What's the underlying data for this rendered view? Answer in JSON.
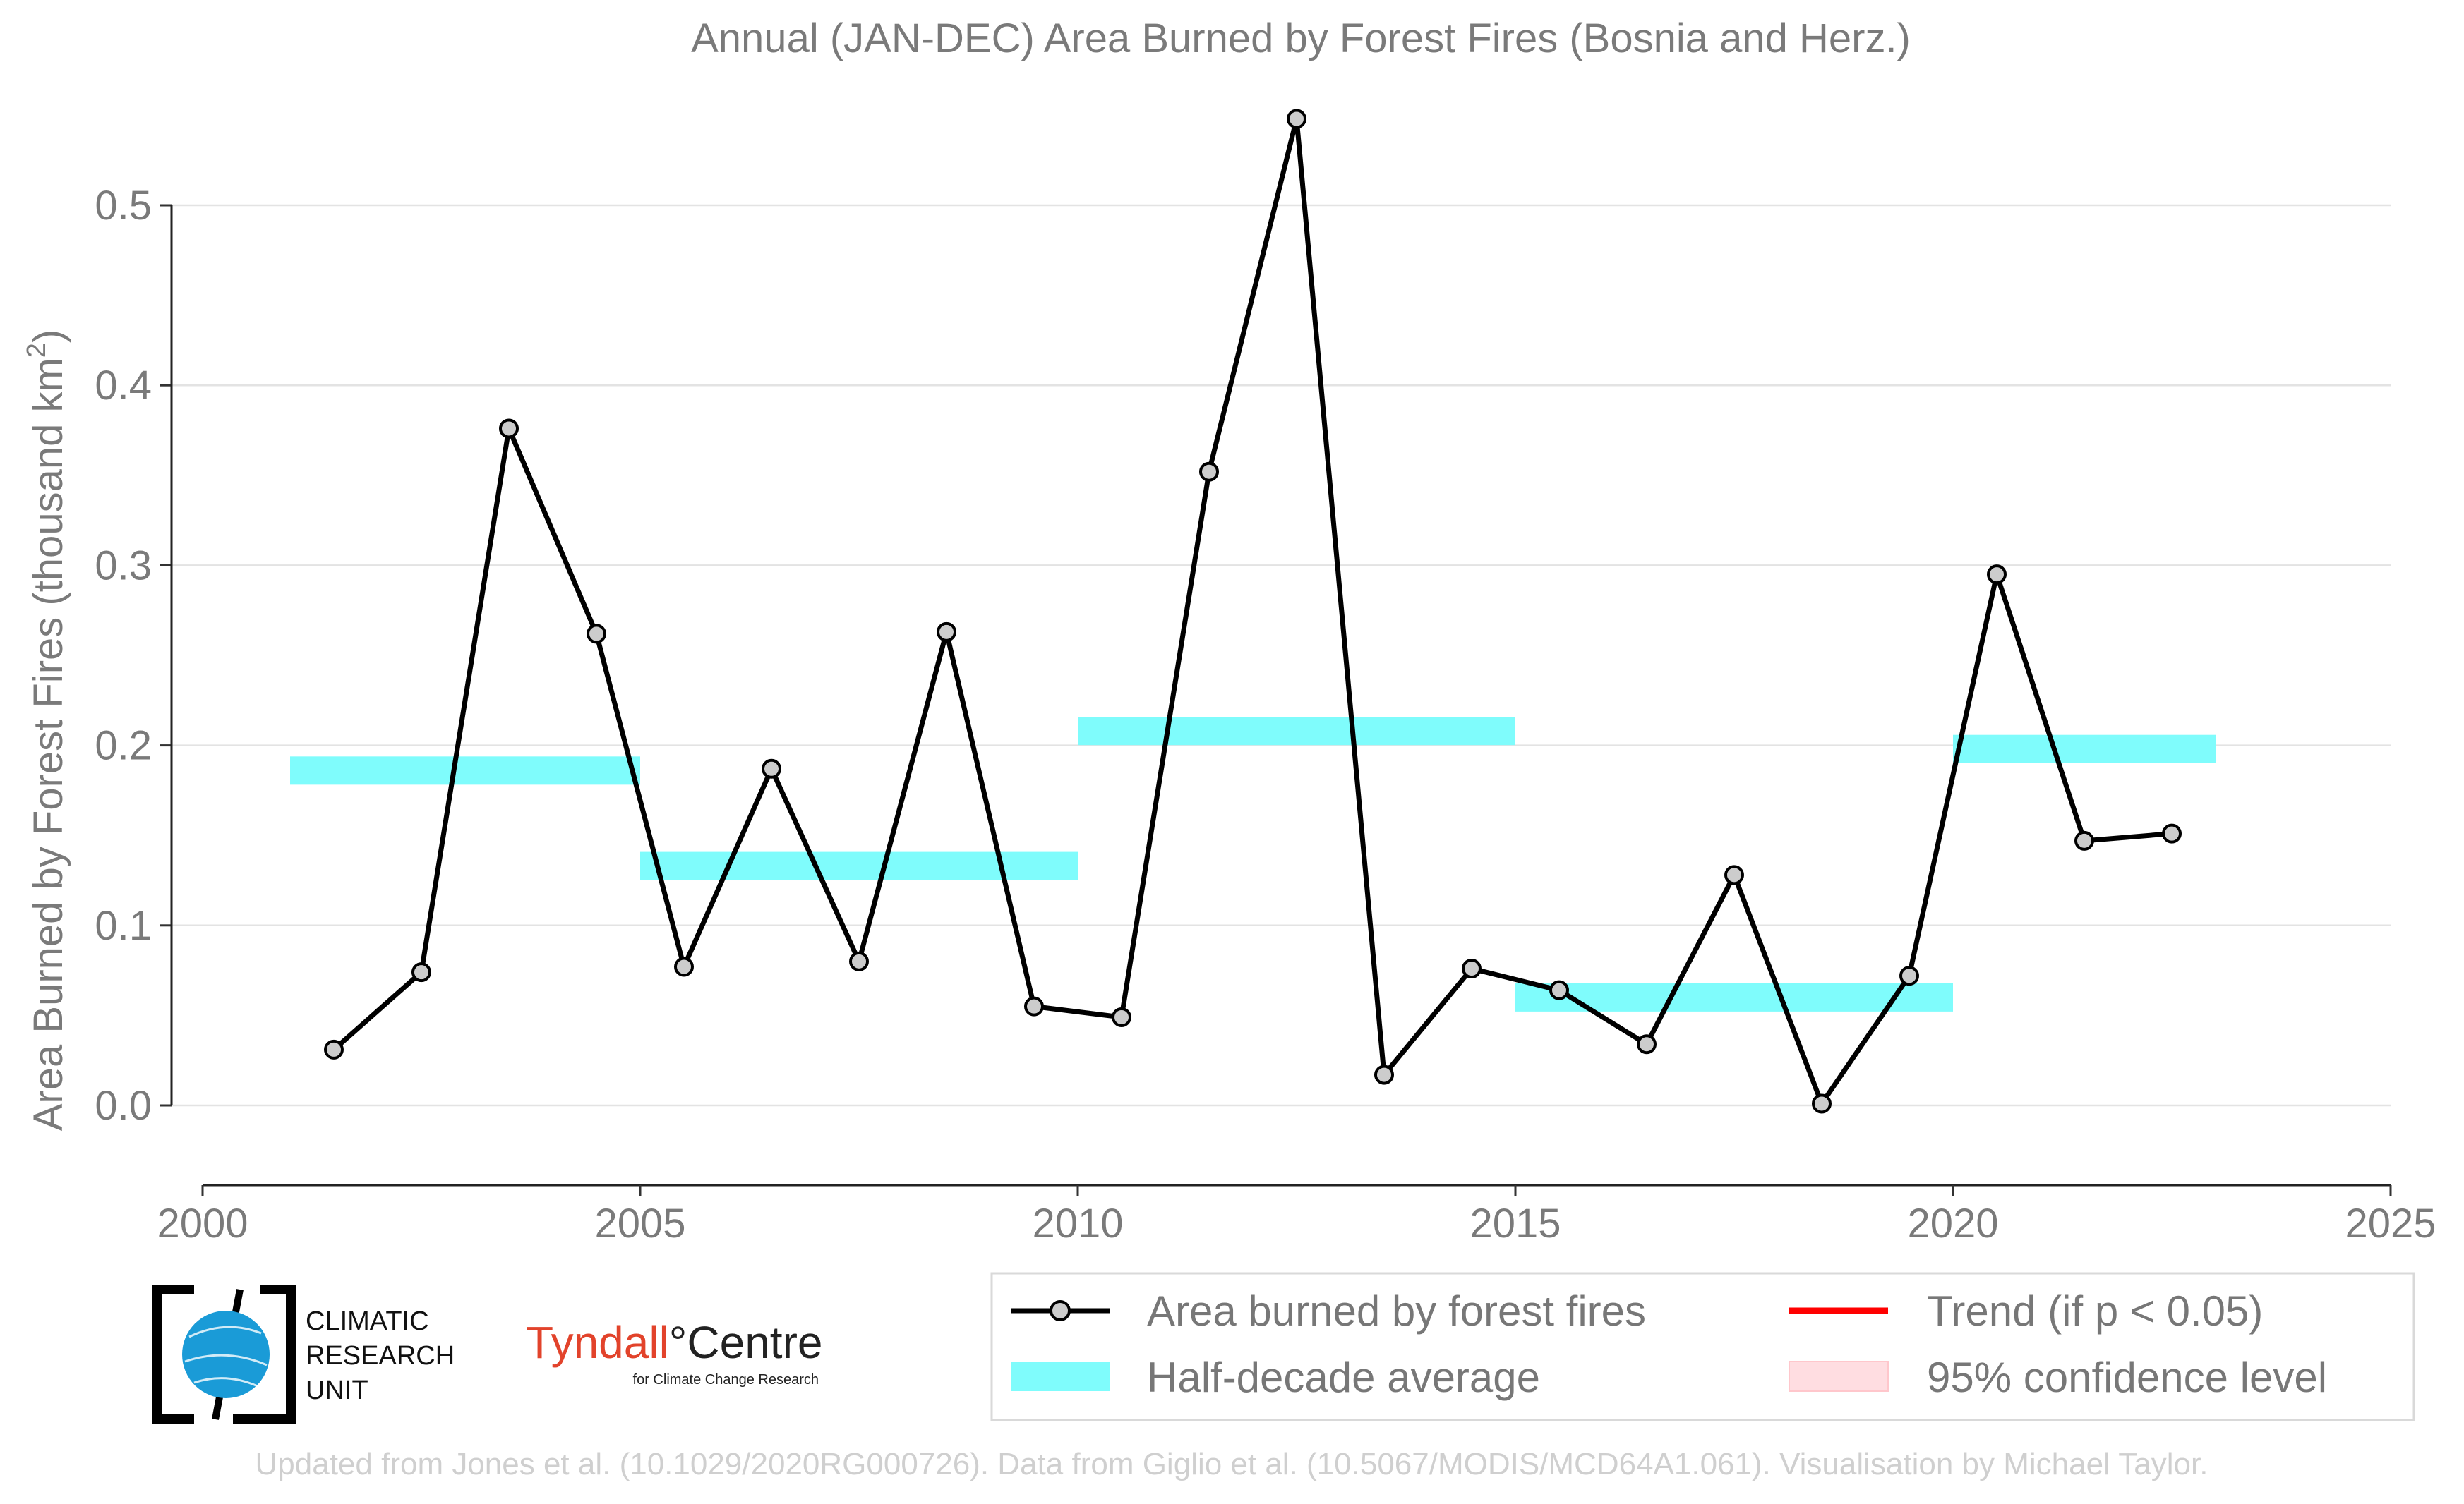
{
  "chart_data": {
    "type": "line",
    "title": "Annual (JAN-DEC) Area Burned by Forest Fires (Bosnia and Herz.)",
    "ylabel": "Area Burned by Forest Fires (thousand km",
    "ylabel_sup": "2",
    "ylabel_close": ")",
    "xlabel": "",
    "xlim": [
      2000,
      2025
    ],
    "ylim": [
      -0.02,
      0.55
    ],
    "x_ticks": [
      2000,
      2005,
      2010,
      2015,
      2020,
      2025
    ],
    "x_tick_labels": [
      "2000",
      "2005",
      "2010",
      "2015",
      "2020",
      "2025"
    ],
    "y_ticks": [
      0.0,
      0.1,
      0.2,
      0.3,
      0.4,
      0.5
    ],
    "y_tick_labels": [
      "0.0",
      "0.1",
      "0.2",
      "0.3",
      "0.4",
      "0.5"
    ],
    "grid": "horizontal",
    "legend_position": "bottom-right",
    "series": [
      {
        "name": "Area burned by forest fires",
        "color": "#000000",
        "marker_fill": "#cccccc",
        "x": [
          2001.5,
          2002.5,
          2003.5,
          2004.5,
          2005.5,
          2006.5,
          2007.5,
          2008.5,
          2009.5,
          2010.5,
          2011.5,
          2012.5,
          2013.5,
          2014.5,
          2015.5,
          2016.5,
          2017.5,
          2018.5,
          2019.5,
          2020.5,
          2021.5,
          2022.5
        ],
        "values": [
          0.031,
          0.074,
          0.376,
          0.262,
          0.077,
          0.187,
          0.08,
          0.263,
          0.055,
          0.049,
          0.352,
          0.548,
          0.017,
          0.076,
          0.064,
          0.034,
          0.128,
          0.001,
          0.072,
          0.295,
          0.147,
          0.151
        ]
      },
      {
        "name": "Half-decade average",
        "type": "band",
        "color": "#7ffcfc",
        "segments": [
          {
            "x0": 2001,
            "x1": 2005,
            "value": 0.186
          },
          {
            "x0": 2005,
            "x1": 2010,
            "value": 0.133
          },
          {
            "x0": 2010,
            "x1": 2015,
            "value": 0.208
          },
          {
            "x0": 2015,
            "x1": 2020,
            "value": 0.06
          },
          {
            "x0": 2020,
            "x1": 2023,
            "value": 0.198
          }
        ]
      }
    ],
    "legend": [
      {
        "label": "Area burned by forest fires",
        "kind": "line-marker",
        "color": "#000000"
      },
      {
        "label": "Trend (if p < 0.05)",
        "kind": "line",
        "color": "#ff0000"
      },
      {
        "label": "Half-decade average",
        "kind": "band",
        "color": "#7ffcfc"
      },
      {
        "label": "95% confidence level",
        "kind": "band",
        "color": "#ffdde1"
      }
    ]
  },
  "logos": {
    "cru": [
      "CLIMATIC",
      "RESEARCH",
      "UNIT"
    ],
    "tyndall_main_a": "Tyndall",
    "tyndall_main_b": "°Centre",
    "tyndall_sub": "for Climate Change Research"
  },
  "footer": "Updated from Jones et al. (10.1029/2020RG000726). Data from Giglio et al. (10.5067/MODIS/MCD64A1.061). Visualisation by Michael Taylor."
}
